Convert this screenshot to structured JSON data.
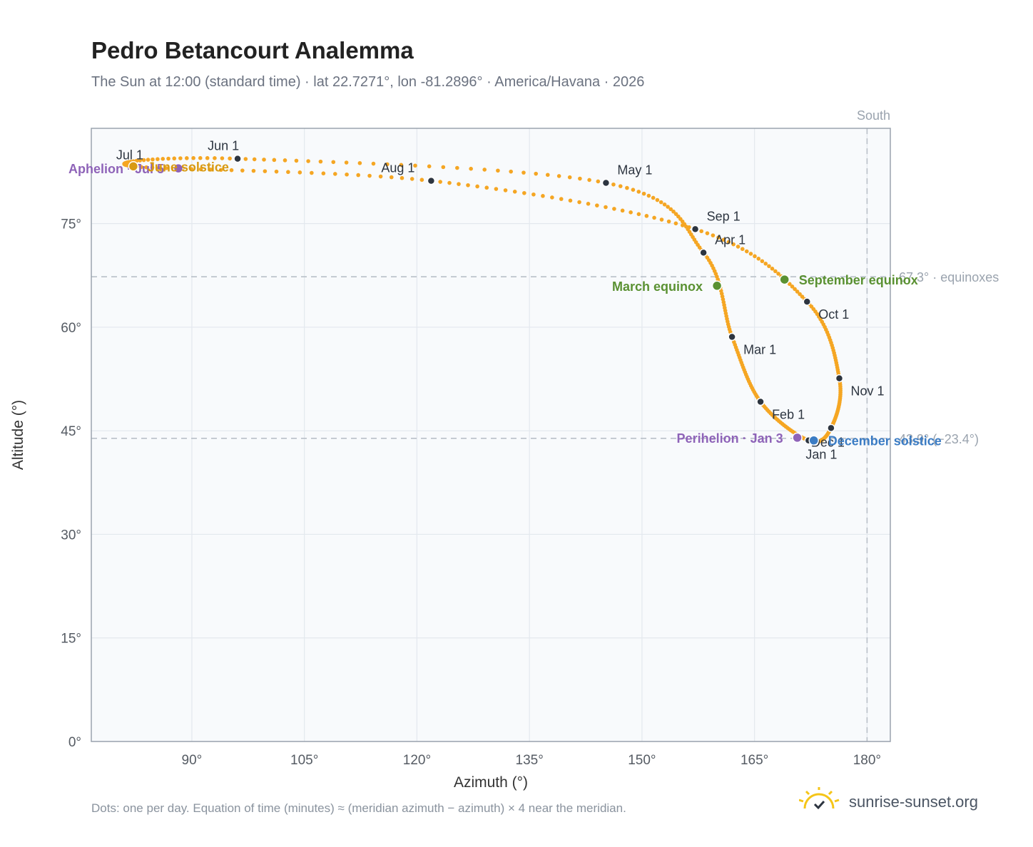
{
  "title": "Pedro Betancourt Analemma",
  "subtitle": "The Sun at 12:00 (standard time) · lat 22.7271°, lon -81.2896° · America/Havana · 2026",
  "footnote": "Dots: one per day. Equation of time (minutes) ≈ (meridian azimuth − azimuth) × 4 near the meridian.",
  "brand": {
    "name": "sunrise-sunset.org",
    "icon": "sun-logo-icon"
  },
  "colors": {
    "path": "#f5a623",
    "month_dot": "#2d3540",
    "equinox": "#5a9132",
    "aphelion": "#8e63b8",
    "solstice_summer": "#d89a12",
    "solstice_winter": "#3b7cc4",
    "plot_bg": "#f8fafc",
    "grid": "#e3e8ee",
    "frame": "#9aa3ae",
    "ref_line": "#b9c0c8"
  },
  "chart_data": {
    "type": "scatter",
    "title": "Pedro Betancourt Analemma",
    "xlabel": "Azimuth (°)",
    "ylabel": "Altitude (°)",
    "xlim": [
      76.6,
      183.1
    ],
    "ylim": [
      0,
      88.8
    ],
    "x_ticks": [
      90,
      105,
      120,
      135,
      150,
      165,
      180
    ],
    "y_ticks": [
      0,
      15,
      30,
      45,
      60,
      75
    ],
    "x_tick_labels": [
      "90°",
      "105°",
      "120°",
      "135°",
      "150°",
      "165°",
      "180°"
    ],
    "y_tick_labels": [
      "0°",
      "15°",
      "30°",
      "45°",
      "60°",
      "75°"
    ],
    "grid": true,
    "meridian": {
      "azimuth": 180,
      "label": "South"
    },
    "reference_lines": [
      {
        "altitude": 67.3,
        "label": "67.3° · equinoxes"
      },
      {
        "altitude": 43.9,
        "label": "43.9° (−23.4°)"
      }
    ],
    "month_points": [
      {
        "label": "Jan 1",
        "az": 172.2,
        "alt": 43.6
      },
      {
        "label": "Feb 1",
        "az": 165.8,
        "alt": 49.2
      },
      {
        "label": "Mar 1",
        "az": 162.0,
        "alt": 58.6
      },
      {
        "label": "Apr 1",
        "az": 158.2,
        "alt": 70.8
      },
      {
        "label": "May 1",
        "az": 145.2,
        "alt": 80.9
      },
      {
        "label": "Jun 1",
        "az": 96.1,
        "alt": 84.4
      },
      {
        "label": "Jul 1",
        "az": 82.2,
        "alt": 83.3
      },
      {
        "label": "Aug 1",
        "az": 121.9,
        "alt": 81.2
      },
      {
        "label": "Sep 1",
        "az": 157.1,
        "alt": 74.2
      },
      {
        "label": "Oct 1",
        "az": 172.0,
        "alt": 63.7
      },
      {
        "label": "Nov 1",
        "az": 176.3,
        "alt": 52.6
      },
      {
        "label": "Dec 1",
        "az": 175.2,
        "alt": 45.4
      }
    ],
    "events": [
      {
        "label": "March equinox",
        "az": 160.0,
        "alt": 66.0,
        "kind": "equinox",
        "anchor": "left"
      },
      {
        "label": "September equinox",
        "az": 169.0,
        "alt": 66.9,
        "kind": "equinox",
        "anchor": "right"
      },
      {
        "label": "Aphelion · Jul 5",
        "az": 88.2,
        "alt": 83.0,
        "kind": "aphelion",
        "anchor": "left"
      },
      {
        "label": "June solstice",
        "az": 82.2,
        "alt": 83.3,
        "kind": "solstice_summer",
        "anchor": "right"
      },
      {
        "label": "Perihelion · Jan 3",
        "az": 170.7,
        "alt": 44.0,
        "kind": "aphelion",
        "anchor": "left"
      },
      {
        "label": "December solstice",
        "az": 172.9,
        "alt": 43.6,
        "kind": "solstice_winter",
        "anchor": "right"
      }
    ]
  }
}
